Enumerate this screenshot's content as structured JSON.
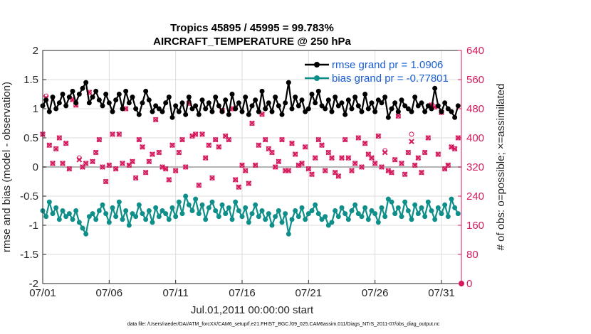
{
  "colors": {
    "rmse": "#000000",
    "bias": "#0f8f8a",
    "obs": "#d6195e",
    "zero_line": "#b3b3b3",
    "grid": "#dcdcdc",
    "legend_text": "#1a5fd4"
  },
  "footer": "data file: /Users/raeder/DAI/ATM_forcXX/CAM6_setup/f.e21.FHIST_BGC.f09_025.CAM6assim.011/Diags_NTrS_2011-07/obs_diag_output.nc",
  "chart_data": {
    "type": "line",
    "title": "Tropics 45895 / 45995 = 99.783%",
    "subtitle": "AIRCRAFT_TEMPERATURE @ 250 hPa",
    "xlabel": "Jul.01,2011 00:00:00 start",
    "ylabel": "rmse and bias (model - observation)",
    "y2label": "# of obs: o=possible; ×=assimilated",
    "xlim": [
      0,
      31.5
    ],
    "ylim": [
      -2,
      2
    ],
    "y2lim": [
      0,
      640
    ],
    "xticks": [
      0,
      5,
      10,
      15,
      20,
      25,
      30
    ],
    "xtick_labels": [
      "07/01",
      "07/06",
      "07/11",
      "07/16",
      "07/21",
      "07/26",
      "07/31"
    ],
    "yticks": [
      -2,
      -1.5,
      -1,
      -0.5,
      0,
      0.5,
      1,
      1.5,
      2
    ],
    "ytick_labels": [
      "-2",
      "-1.5",
      "-1",
      "-0.5",
      "0",
      "0.5",
      "1",
      "1.5",
      "2"
    ],
    "y2ticks": [
      0,
      80,
      160,
      240,
      320,
      400,
      480,
      560,
      640
    ],
    "y2tick_labels": [
      "0",
      "80",
      "160",
      "240",
      "320",
      "400",
      "480",
      "560",
      "640"
    ],
    "grid": true,
    "legend_position": "top-right",
    "legend": [
      "rmse grand pr = 1.0906",
      "bias grand pr = -0.77801"
    ],
    "series": [
      {
        "name": "rmse grand pr = 1.0906",
        "marker": "circle",
        "x": [
          0.0,
          0.25,
          0.5,
          0.75,
          1.0,
          1.25,
          1.5,
          1.75,
          2.0,
          2.25,
          2.5,
          2.75,
          3.0,
          3.25,
          3.5,
          3.75,
          4.0,
          4.25,
          4.5,
          4.75,
          5.0,
          5.25,
          5.5,
          5.75,
          6.0,
          6.25,
          6.5,
          6.75,
          7.0,
          7.25,
          7.5,
          7.75,
          8.0,
          8.25,
          8.5,
          8.75,
          9.0,
          9.25,
          9.5,
          9.75,
          10.0,
          10.25,
          10.5,
          10.75,
          11.0,
          11.25,
          11.5,
          11.75,
          12.0,
          12.25,
          12.5,
          12.75,
          13.0,
          13.25,
          13.5,
          13.75,
          14.0,
          14.25,
          14.5,
          14.75,
          15.0,
          15.25,
          15.5,
          15.75,
          16.0,
          16.25,
          16.5,
          16.75,
          17.0,
          17.25,
          17.5,
          17.75,
          18.0,
          18.25,
          18.5,
          18.75,
          19.0,
          19.25,
          19.5,
          19.75,
          20.0,
          20.25,
          20.5,
          20.75,
          21.0,
          21.25,
          21.5,
          21.75,
          22.0,
          22.25,
          22.5,
          22.75,
          23.0,
          23.25,
          23.5,
          23.75,
          24.0,
          24.25,
          24.5,
          24.75,
          25.0,
          25.25,
          25.5,
          25.75,
          26.0,
          26.25,
          26.5,
          26.75,
          27.0,
          27.25,
          27.5,
          27.75,
          28.0,
          28.25,
          28.5,
          28.75,
          29.0,
          29.25,
          29.5,
          29.75,
          30.0,
          30.25,
          30.5,
          30.75,
          31.0,
          31.25
        ],
        "values": [
          1.05,
          1.15,
          0.95,
          1.2,
          1.0,
          1.1,
          1.25,
          1.05,
          1.2,
          1.3,
          1.1,
          1.25,
          1.35,
          1.45,
          1.1,
          1.2,
          1.3,
          1.15,
          1.05,
          1.25,
          1.1,
          0.95,
          1.15,
          1.25,
          1.0,
          1.3,
          1.1,
          1.2,
          1.0,
          0.9,
          1.1,
          1.3,
          1.15,
          0.95,
          1.05,
          1.0,
          0.95,
          1.1,
          1.2,
          0.85,
          1.05,
          0.95,
          1.1,
          0.9,
          1.2,
          1.0,
          1.05,
          0.9,
          1.15,
          1.0,
          1.1,
          0.95,
          1.2,
          1.05,
          0.95,
          1.15,
          0.9,
          1.25,
          1.0,
          1.1,
          0.95,
          1.2,
          0.9,
          1.05,
          1.15,
          0.95,
          1.3,
          1.0,
          1.1,
          0.95,
          1.2,
          1.05,
          0.9,
          1.1,
          1.45,
          1.0,
          1.2,
          1.05,
          1.15,
          0.95,
          1.0,
          1.25,
          1.1,
          1.3,
          1.05,
          1.0,
          1.15,
          0.95,
          1.2,
          1.05,
          1.1,
          0.9,
          1.15,
          1.0,
          1.2,
          1.05,
          0.95,
          1.25,
          1.0,
          1.1,
          0.95,
          1.15,
          1.1,
          1.2,
          0.85,
          1.0,
          1.1,
          0.95,
          1.15,
          1.05,
          1.0,
          0.95,
          1.2,
          1.05,
          1.1,
          0.95,
          1.05,
          1.0,
          1.35,
          1.05,
          0.95,
          1.1,
          1.0,
          0.95,
          0.85,
          1.05
        ]
      },
      {
        "name": "bias grand pr = -0.77801",
        "marker": "circle",
        "x": [
          0.0,
          0.25,
          0.5,
          0.75,
          1.0,
          1.25,
          1.5,
          1.75,
          2.0,
          2.25,
          2.5,
          2.75,
          3.0,
          3.25,
          3.5,
          3.75,
          4.0,
          4.25,
          4.5,
          4.75,
          5.0,
          5.25,
          5.5,
          5.75,
          6.0,
          6.25,
          6.5,
          6.75,
          7.0,
          7.25,
          7.5,
          7.75,
          8.0,
          8.25,
          8.5,
          8.75,
          9.0,
          9.25,
          9.5,
          9.75,
          10.0,
          10.25,
          10.5,
          10.75,
          11.0,
          11.25,
          11.5,
          11.75,
          12.0,
          12.25,
          12.5,
          12.75,
          13.0,
          13.25,
          13.5,
          13.75,
          14.0,
          14.25,
          14.5,
          14.75,
          15.0,
          15.25,
          15.5,
          15.75,
          16.0,
          16.25,
          16.5,
          16.75,
          17.0,
          17.25,
          17.5,
          17.75,
          18.0,
          18.25,
          18.5,
          18.75,
          19.0,
          19.25,
          19.5,
          19.75,
          20.0,
          20.25,
          20.5,
          20.75,
          21.0,
          21.25,
          21.5,
          21.75,
          22.0,
          22.25,
          22.5,
          22.75,
          23.0,
          23.25,
          23.5,
          23.75,
          24.0,
          24.25,
          24.5,
          24.75,
          25.0,
          25.25,
          25.5,
          25.75,
          26.0,
          26.25,
          26.5,
          26.75,
          27.0,
          27.25,
          27.5,
          27.75,
          28.0,
          28.25,
          28.5,
          28.75,
          29.0,
          29.25,
          29.5,
          29.75,
          30.0,
          30.25,
          30.5,
          30.75,
          31.0,
          31.25
        ],
        "values": [
          -0.75,
          -0.85,
          -0.6,
          -0.8,
          -0.7,
          -0.9,
          -0.75,
          -0.85,
          -0.8,
          -0.9,
          -0.75,
          -0.95,
          -1.05,
          -1.15,
          -0.85,
          -0.8,
          -0.9,
          -0.75,
          -0.65,
          -0.8,
          -0.95,
          -0.7,
          -0.85,
          -0.6,
          -0.9,
          -0.75,
          -1.0,
          -0.8,
          -0.85,
          -0.65,
          -0.8,
          -0.9,
          -0.75,
          -0.95,
          -0.7,
          -0.85,
          -0.75,
          -0.8,
          -0.9,
          -0.7,
          -0.85,
          -0.6,
          -0.8,
          -0.5,
          -0.65,
          -0.75,
          -0.55,
          -0.8,
          -0.65,
          -0.9,
          -0.7,
          -0.6,
          -0.75,
          -0.85,
          -0.65,
          -0.8,
          -0.7,
          -0.9,
          -0.6,
          -0.75,
          -0.85,
          -0.7,
          -0.95,
          -0.8,
          -0.65,
          -0.85,
          -0.75,
          -0.9,
          -0.8,
          -1.0,
          -0.85,
          -0.75,
          -0.95,
          -0.8,
          -1.15,
          -0.9,
          -0.75,
          -0.85,
          -0.7,
          -0.9,
          -0.8,
          -0.75,
          -0.65,
          -0.8,
          -0.9,
          -0.85,
          -1.0,
          -0.95,
          -0.75,
          -0.85,
          -0.7,
          -0.8,
          -0.9,
          -0.75,
          -0.65,
          -0.8,
          -0.85,
          -0.7,
          -0.9,
          -0.75,
          -0.8,
          -0.95,
          -0.7,
          -0.85,
          -0.55,
          -0.6,
          -0.8,
          -0.7,
          -0.85,
          -0.6,
          -0.75,
          -0.9,
          -0.65,
          -0.8,
          -0.7,
          -0.85,
          -0.6,
          -0.75,
          -0.9,
          -0.7,
          -0.8,
          -0.65,
          -0.85,
          -0.55,
          -0.7,
          -0.8
        ]
      },
      {
        "name": "# of obs assimilated",
        "marker": "x",
        "axis": "right",
        "x": [
          0.0,
          0.25,
          0.5,
          0.75,
          1.0,
          1.25,
          1.5,
          1.75,
          2.0,
          2.25,
          2.5,
          2.75,
          3.0,
          3.25,
          3.5,
          3.75,
          4.0,
          4.25,
          4.5,
          4.75,
          5.0,
          5.25,
          5.5,
          5.75,
          6.0,
          6.25,
          6.5,
          6.75,
          7.0,
          7.25,
          7.5,
          7.75,
          8.0,
          8.25,
          8.5,
          8.75,
          9.0,
          9.25,
          9.5,
          9.75,
          10.0,
          10.25,
          10.5,
          10.75,
          11.0,
          11.25,
          11.5,
          11.75,
          12.0,
          12.25,
          12.5,
          12.75,
          13.0,
          13.25,
          13.5,
          13.75,
          14.0,
          14.25,
          14.5,
          14.75,
          15.0,
          15.25,
          15.5,
          15.75,
          16.0,
          16.25,
          16.5,
          16.75,
          17.0,
          17.25,
          17.5,
          17.75,
          18.0,
          18.25,
          18.5,
          18.75,
          19.0,
          19.25,
          19.5,
          19.75,
          20.0,
          20.25,
          20.5,
          20.75,
          21.0,
          21.25,
          21.5,
          21.75,
          22.0,
          22.25,
          22.5,
          22.75,
          23.0,
          23.25,
          23.5,
          23.75,
          24.0,
          24.25,
          24.5,
          24.75,
          25.0,
          25.25,
          25.5,
          25.75,
          26.0,
          26.25,
          26.5,
          26.75,
          27.0,
          27.25,
          27.5,
          27.75,
          28.0,
          28.25,
          28.5,
          28.75,
          29.0,
          29.25,
          29.5,
          29.75,
          30.0,
          30.25,
          30.5,
          30.75,
          31.0,
          31.25
        ],
        "values": [
          410,
          510,
          380,
          330,
          370,
          400,
          330,
          385,
          315,
          505,
          490,
          340,
          320,
          330,
          525,
          335,
          360,
          395,
          320,
          280,
          325,
          410,
          315,
          410,
          330,
          480,
          325,
          335,
          290,
          395,
          375,
          305,
          335,
          355,
          450,
          360,
          320,
          315,
          285,
          380,
          310,
          360,
          395,
          320,
          495,
          405,
          410,
          270,
          410,
          345,
          380,
          290,
          395,
          375,
          475,
          405,
          395,
          480,
          285,
          265,
          325,
          310,
          275,
          440,
          325,
          380,
          465,
          395,
          370,
          360,
          320,
          335,
          395,
          310,
          310,
          385,
          355,
          325,
          330,
          375,
          315,
          300,
          345,
          395,
          380,
          310,
          360,
          345,
          305,
          295,
          345,
          395,
          345,
          310,
          330,
          400,
          320,
          385,
          355,
          345,
          330,
          405,
          320,
          360,
          310,
          305,
          340,
          460,
          330,
          300,
          360,
          390,
          325,
          345,
          305,
          360,
          400,
          490,
          485,
          355,
          470,
          315,
          325,
          375,
          370,
          400
        ]
      },
      {
        "name": "# of obs possible",
        "marker": "circle-open",
        "axis": "right",
        "x": [
          0.0,
          0.25,
          0.5,
          0.75,
          1.0,
          1.25,
          1.5,
          1.75,
          2.0,
          2.25,
          2.5,
          2.75,
          3.0,
          3.25,
          3.5,
          3.75,
          4.0,
          4.25,
          4.5,
          4.75,
          5.0,
          5.25,
          5.5,
          5.75,
          6.0,
          6.25,
          6.5,
          6.75,
          7.0,
          7.25,
          7.5,
          7.75,
          8.0,
          8.25,
          8.5,
          8.75,
          9.0,
          9.25,
          9.5,
          9.75,
          10.0,
          10.25,
          10.5,
          10.75,
          11.0,
          11.25,
          11.5,
          11.75,
          12.0,
          12.25,
          12.5,
          12.75,
          13.0,
          13.25,
          13.5,
          13.75,
          14.0,
          14.25,
          14.5,
          14.75,
          15.0,
          15.25,
          15.5,
          15.75,
          16.0,
          16.25,
          16.5,
          16.75,
          17.0,
          17.25,
          17.5,
          17.75,
          18.0,
          18.25,
          18.5,
          18.75,
          19.0,
          19.25,
          19.5,
          19.75,
          20.0,
          20.25,
          20.5,
          20.75,
          21.0,
          21.25,
          21.5,
          21.75,
          22.0,
          22.25,
          22.5,
          22.75,
          23.0,
          23.25,
          23.5,
          23.75,
          24.0,
          24.25,
          24.5,
          24.75,
          25.0,
          25.25,
          25.5,
          25.75,
          26.0,
          26.25,
          26.5,
          26.75,
          27.0,
          27.25,
          27.5,
          27.75,
          28.0,
          28.25,
          28.5,
          28.75,
          29.0,
          29.25,
          29.5,
          29.75,
          30.0,
          30.25,
          30.5,
          30.75,
          31.0,
          31.25
        ],
        "values": [
          410,
          515,
          380,
          330,
          370,
          400,
          330,
          385,
          315,
          505,
          490,
          345,
          320,
          330,
          525,
          335,
          360,
          395,
          320,
          280,
          325,
          410,
          315,
          410,
          330,
          480,
          325,
          335,
          290,
          395,
          375,
          305,
          335,
          355,
          450,
          360,
          320,
          315,
          285,
          380,
          310,
          360,
          395,
          320,
          495,
          405,
          410,
          270,
          410,
          345,
          380,
          290,
          395,
          375,
          475,
          405,
          395,
          480,
          285,
          265,
          325,
          310,
          275,
          440,
          325,
          380,
          465,
          395,
          370,
          360,
          320,
          335,
          395,
          310,
          310,
          385,
          355,
          325,
          330,
          375,
          315,
          300,
          345,
          395,
          380,
          310,
          360,
          345,
          305,
          295,
          345,
          395,
          345,
          310,
          330,
          400,
          320,
          385,
          355,
          345,
          330,
          405,
          320,
          365,
          310,
          305,
          340,
          460,
          330,
          300,
          360,
          410,
          325,
          345,
          305,
          360,
          400,
          490,
          485,
          355,
          470,
          315,
          325,
          375,
          370,
          400
        ]
      }
    ]
  }
}
